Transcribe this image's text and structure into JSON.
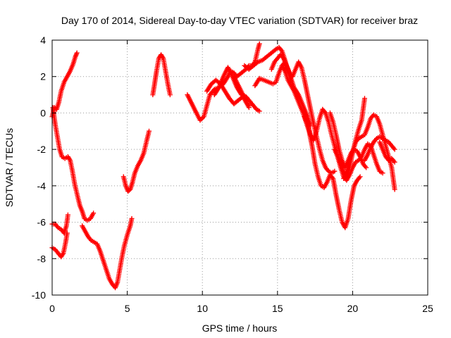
{
  "chart_data": {
    "type": "scatter",
    "title": "Day 170 of 2014, Sidereal Day-to-day VTEC variation (SDTVAR) for receiver braz",
    "xlabel": "GPS time / hours",
    "ylabel": "SDTVAR / TECUs",
    "xlim": [
      0,
      25
    ],
    "ylim": [
      -10,
      4
    ],
    "xticks": [
      0,
      5,
      10,
      15,
      20,
      25
    ],
    "yticks": [
      -10,
      -8,
      -6,
      -4,
      -2,
      0,
      2,
      4
    ],
    "grid": true,
    "marker": "+",
    "color": "#ff0000",
    "tracks": [
      [
        [
          0.0,
          -0.2
        ],
        [
          0.15,
          0.3
        ],
        [
          0.3,
          0.2
        ],
        [
          0.45,
          0.6
        ],
        [
          0.6,
          1.2
        ],
        [
          0.8,
          1.7
        ],
        [
          1.0,
          2.0
        ],
        [
          1.2,
          2.3
        ],
        [
          1.4,
          2.7
        ],
        [
          1.55,
          3.1
        ],
        [
          1.65,
          3.3
        ]
      ],
      [
        [
          0.05,
          0.3
        ],
        [
          0.2,
          -0.6
        ],
        [
          0.35,
          -1.3
        ],
        [
          0.5,
          -2.0
        ],
        [
          0.65,
          -2.4
        ],
        [
          0.85,
          -2.5
        ],
        [
          1.05,
          -2.4
        ],
        [
          1.2,
          -2.6
        ],
        [
          1.35,
          -3.2
        ],
        [
          1.5,
          -3.9
        ],
        [
          1.7,
          -4.6
        ],
        [
          1.85,
          -5.1
        ],
        [
          2.0,
          -5.4
        ],
        [
          2.15,
          -5.8
        ],
        [
          2.35,
          -5.9
        ],
        [
          2.55,
          -5.8
        ],
        [
          2.75,
          -5.5
        ]
      ],
      [
        [
          0.0,
          -6.1
        ],
        [
          0.2,
          -6.1
        ],
        [
          0.4,
          -6.3
        ],
        [
          0.6,
          -6.4
        ],
        [
          0.8,
          -6.6
        ],
        [
          0.95,
          -6.2
        ],
        [
          1.05,
          -5.6
        ]
      ],
      [
        [
          0.0,
          -7.4
        ],
        [
          0.2,
          -7.5
        ],
        [
          0.4,
          -7.7
        ],
        [
          0.6,
          -7.9
        ],
        [
          0.75,
          -7.7
        ],
        [
          0.9,
          -7.1
        ],
        [
          1.0,
          -6.6
        ]
      ],
      [
        [
          2.0,
          -6.2
        ],
        [
          2.2,
          -6.5
        ],
        [
          2.4,
          -6.8
        ],
        [
          2.6,
          -7.0
        ],
        [
          2.8,
          -7.1
        ],
        [
          3.0,
          -7.2
        ],
        [
          3.2,
          -7.6
        ],
        [
          3.4,
          -8.1
        ],
        [
          3.6,
          -8.6
        ],
        [
          3.8,
          -9.1
        ],
        [
          4.0,
          -9.4
        ],
        [
          4.2,
          -9.6
        ],
        [
          4.35,
          -9.3
        ],
        [
          4.5,
          -8.6
        ],
        [
          4.65,
          -7.9
        ],
        [
          4.8,
          -7.3
        ],
        [
          5.0,
          -6.7
        ],
        [
          5.2,
          -6.2
        ],
        [
          5.3,
          -5.8
        ]
      ],
      [
        [
          4.75,
          -3.5
        ],
        [
          4.9,
          -4.0
        ],
        [
          5.05,
          -4.3
        ],
        [
          5.2,
          -4.2
        ],
        [
          5.35,
          -3.8
        ],
        [
          5.5,
          -3.3
        ],
        [
          5.7,
          -2.9
        ],
        [
          5.9,
          -2.6
        ],
        [
          6.1,
          -2.2
        ],
        [
          6.3,
          -1.5
        ],
        [
          6.45,
          -1.0
        ]
      ],
      [
        [
          6.7,
          1.0
        ],
        [
          6.8,
          1.5
        ],
        [
          6.95,
          2.3
        ],
        [
          7.1,
          3.0
        ],
        [
          7.25,
          3.2
        ],
        [
          7.4,
          3.0
        ],
        [
          7.55,
          2.3
        ],
        [
          7.7,
          1.6
        ],
        [
          7.85,
          1.0
        ]
      ],
      [
        [
          9.0,
          1.0
        ],
        [
          9.3,
          0.5
        ],
        [
          9.6,
          0.0
        ],
        [
          9.85,
          -0.4
        ],
        [
          10.1,
          -0.2
        ],
        [
          10.3,
          0.4
        ],
        [
          10.5,
          1.0
        ],
        [
          10.8,
          1.3
        ],
        [
          11.1,
          1.4
        ],
        [
          11.4,
          1.6
        ],
        [
          11.7,
          2.0
        ],
        [
          11.9,
          2.3
        ],
        [
          12.1,
          2.2
        ],
        [
          12.3,
          2.0
        ],
        [
          12.6,
          2.2
        ],
        [
          12.9,
          2.4
        ],
        [
          13.1,
          2.6
        ],
        [
          13.3,
          2.6
        ],
        [
          13.5,
          2.8
        ],
        [
          13.7,
          3.5
        ],
        [
          13.8,
          3.8
        ]
      ],
      [
        [
          10.3,
          1.2
        ],
        [
          10.6,
          1.6
        ],
        [
          10.9,
          1.8
        ],
        [
          11.2,
          1.6
        ],
        [
          11.5,
          1.2
        ],
        [
          11.8,
          0.8
        ],
        [
          12.1,
          0.5
        ],
        [
          12.4,
          0.7
        ],
        [
          12.7,
          0.9
        ],
        [
          12.9,
          0.6
        ],
        [
          13.1,
          0.3
        ]
      ],
      [
        [
          10.8,
          1.0
        ],
        [
          11.1,
          1.4
        ],
        [
          11.4,
          2.0
        ],
        [
          11.7,
          2.5
        ],
        [
          12.0,
          2.0
        ],
        [
          12.3,
          1.4
        ],
        [
          12.6,
          1.0
        ],
        [
          12.9,
          0.9
        ],
        [
          13.2,
          0.6
        ],
        [
          13.4,
          0.4
        ],
        [
          13.6,
          0.2
        ],
        [
          13.8,
          0.1
        ]
      ],
      [
        [
          12.1,
          2.0
        ],
        [
          12.4,
          1.5
        ],
        [
          12.7,
          1.0
        ],
        [
          12.9,
          0.6
        ],
        [
          13.1,
          0.4
        ]
      ],
      [
        [
          12.8,
          2.6
        ],
        [
          13.1,
          2.4
        ],
        [
          13.4,
          2.6
        ],
        [
          13.7,
          2.8
        ],
        [
          14.0,
          2.9
        ],
        [
          14.3,
          3.1
        ],
        [
          14.6,
          3.3
        ],
        [
          14.9,
          3.5
        ],
        [
          15.1,
          3.6
        ],
        [
          15.3,
          3.4
        ],
        [
          15.5,
          2.9
        ],
        [
          15.7,
          2.3
        ],
        [
          15.9,
          1.8
        ]
      ],
      [
        [
          13.5,
          1.5
        ],
        [
          13.8,
          1.9
        ],
        [
          14.1,
          1.8
        ],
        [
          14.4,
          1.7
        ],
        [
          14.7,
          1.6
        ],
        [
          14.9,
          1.7
        ],
        [
          15.1,
          2.2
        ],
        [
          15.3,
          2.6
        ],
        [
          15.5,
          2.8
        ],
        [
          15.7,
          2.4
        ],
        [
          15.9,
          1.9
        ],
        [
          16.1,
          1.4
        ],
        [
          16.4,
          1.0
        ],
        [
          16.7,
          0.4
        ],
        [
          17.0,
          -0.2
        ],
        [
          17.2,
          -0.7
        ]
      ],
      [
        [
          14.6,
          2.4
        ],
        [
          14.8,
          2.8
        ],
        [
          15.0,
          3.0
        ],
        [
          15.2,
          3.2
        ],
        [
          15.4,
          3.0
        ],
        [
          15.6,
          2.6
        ],
        [
          15.8,
          2.2
        ],
        [
          16.0,
          2.0
        ],
        [
          16.2,
          2.4
        ],
        [
          16.4,
          2.8
        ],
        [
          16.6,
          2.5
        ],
        [
          16.8,
          1.8
        ],
        [
          17.0,
          1.0
        ],
        [
          17.2,
          0.2
        ],
        [
          17.4,
          -0.6
        ],
        [
          17.6,
          -1.3
        ],
        [
          17.8,
          -2.0
        ],
        [
          18.0,
          -2.6
        ],
        [
          18.2,
          -3.0
        ],
        [
          18.4,
          -3.2
        ],
        [
          18.6,
          -3.3
        ],
        [
          18.8,
          -3.2
        ]
      ],
      [
        [
          15.3,
          2.6
        ],
        [
          15.5,
          2.3
        ],
        [
          15.7,
          1.8
        ],
        [
          15.9,
          1.5
        ],
        [
          16.1,
          1.2
        ],
        [
          16.3,
          0.8
        ],
        [
          16.5,
          0.4
        ],
        [
          16.7,
          0.0
        ],
        [
          16.9,
          -0.5
        ],
        [
          17.1,
          -1.0
        ],
        [
          17.3,
          -1.8
        ],
        [
          17.5,
          -2.8
        ],
        [
          17.7,
          -3.5
        ],
        [
          17.9,
          -4.0
        ],
        [
          18.1,
          -4.1
        ],
        [
          18.3,
          -3.8
        ],
        [
          18.5,
          -3.4
        ],
        [
          18.7,
          -3.6
        ],
        [
          18.9,
          -4.5
        ],
        [
          19.1,
          -5.3
        ],
        [
          19.3,
          -6.0
        ],
        [
          19.5,
          -6.3
        ],
        [
          19.7,
          -5.8
        ],
        [
          19.9,
          -4.8
        ],
        [
          20.1,
          -4.0
        ],
        [
          20.3,
          -3.7
        ],
        [
          20.5,
          -3.5
        ]
      ],
      [
        [
          16.8,
          -0.2
        ],
        [
          17.0,
          -0.6
        ],
        [
          17.2,
          -1.2
        ],
        [
          17.4,
          -1.5
        ],
        [
          17.6,
          -1.0
        ],
        [
          17.8,
          -0.3
        ],
        [
          18.0,
          0.2
        ],
        [
          18.2,
          0.0
        ],
        [
          18.4,
          -0.5
        ],
        [
          18.6,
          -1.2
        ],
        [
          18.8,
          -1.8
        ],
        [
          19.0,
          -2.4
        ],
        [
          19.2,
          -3.0
        ],
        [
          19.4,
          -3.5
        ],
        [
          19.6,
          -3.7
        ],
        [
          19.8,
          -3.4
        ],
        [
          20.0,
          -3.0
        ],
        [
          20.2,
          -2.7
        ],
        [
          20.4,
          -2.6
        ],
        [
          20.6,
          -2.4
        ],
        [
          20.8,
          -2.0
        ],
        [
          21.0,
          -1.7
        ],
        [
          21.2,
          -1.8
        ],
        [
          21.4,
          -2.3
        ],
        [
          21.6,
          -2.8
        ],
        [
          21.8,
          -3.2
        ],
        [
          22.0,
          -3.3
        ]
      ],
      [
        [
          18.5,
          0.0
        ],
        [
          18.7,
          -0.5
        ],
        [
          18.9,
          -1.2
        ],
        [
          19.1,
          -2.0
        ],
        [
          19.3,
          -2.6
        ],
        [
          19.5,
          -3.0
        ],
        [
          19.7,
          -2.6
        ],
        [
          19.9,
          -2.2
        ],
        [
          20.1,
          -2.0
        ],
        [
          20.3,
          -2.1
        ],
        [
          20.5,
          -2.4
        ],
        [
          20.7,
          -2.8
        ],
        [
          20.9,
          -3.0
        ]
      ],
      [
        [
          18.8,
          -2.0
        ],
        [
          19.0,
          -2.4
        ],
        [
          19.2,
          -2.8
        ],
        [
          19.4,
          -3.2
        ],
        [
          19.6,
          -3.5
        ],
        [
          19.8,
          -3.0
        ],
        [
          20.0,
          -2.2
        ],
        [
          20.2,
          -1.5
        ],
        [
          20.4,
          -0.9
        ],
        [
          20.6,
          -0.4
        ],
        [
          20.7,
          0.2
        ],
        [
          20.8,
          0.8
        ]
      ],
      [
        [
          19.4,
          -3.6
        ],
        [
          19.6,
          -3.2
        ],
        [
          19.8,
          -2.6
        ],
        [
          20.0,
          -2.1
        ],
        [
          20.2,
          -1.6
        ],
        [
          20.4,
          -1.4
        ],
        [
          20.6,
          -1.3
        ],
        [
          20.8,
          -1.2
        ],
        [
          21.0,
          -0.8
        ],
        [
          21.2,
          -0.3
        ],
        [
          21.4,
          -0.1
        ],
        [
          21.6,
          -0.2
        ],
        [
          21.8,
          -0.6
        ],
        [
          22.0,
          -1.2
        ],
        [
          22.2,
          -1.8
        ],
        [
          22.4,
          -2.4
        ],
        [
          22.6,
          -3.0
        ],
        [
          22.8,
          -4.2
        ]
      ],
      [
        [
          20.8,
          -2.6
        ],
        [
          21.0,
          -2.3
        ],
        [
          21.2,
          -1.9
        ],
        [
          21.4,
          -1.6
        ],
        [
          21.6,
          -1.4
        ],
        [
          21.8,
          -1.3
        ],
        [
          22.0,
          -1.4
        ],
        [
          22.2,
          -1.5
        ],
        [
          22.4,
          -1.6
        ],
        [
          22.6,
          -1.8
        ],
        [
          22.8,
          -2.0
        ]
      ],
      [
        [
          21.8,
          -1.6
        ],
        [
          22.0,
          -2.0
        ],
        [
          22.2,
          -2.4
        ],
        [
          22.4,
          -2.6
        ],
        [
          22.6,
          -2.5
        ],
        [
          22.8,
          -2.7
        ]
      ]
    ]
  }
}
